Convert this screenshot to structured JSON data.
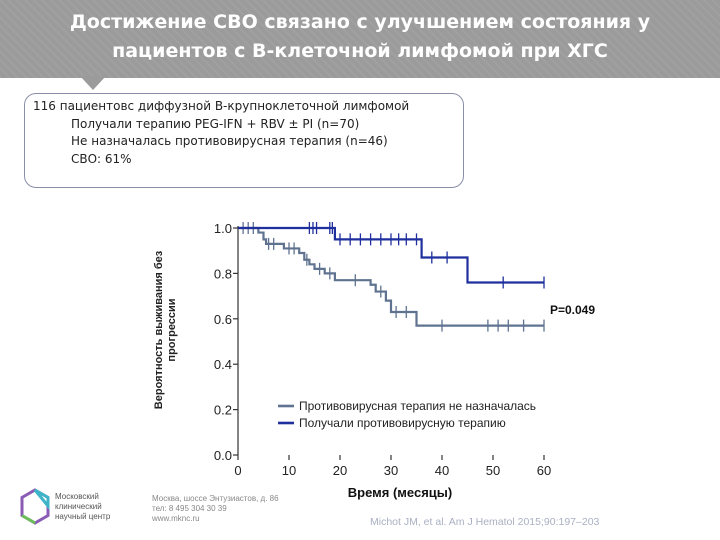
{
  "slide": {
    "title_line1": "Достижение СВО связано с улучшением состояния у",
    "title_line2": "пациентов  с В-клеточной лимфомой при ХГС"
  },
  "info_box": {
    "line1": "116 пациентовс диффузной В-крупноклеточной лимфомой",
    "line2": "Получали терапию PEG-IFN + RBV ± PI (n=70)",
    "line3": "Не назначалась противовирусная терапия (n=46)",
    "line4": "СВО:  61%"
  },
  "footer": {
    "org_line1": "Московский",
    "org_line2": "клинический",
    "org_line3": "научный центр",
    "addr_line1": "Москва, шоссе Энтузиастов, д. 86",
    "addr_line2": "тел: 8 495 304 30 39",
    "addr_line3": "www.mknc.ru",
    "citation": "Michot JM, et al. Am J Hematol 2015;90:197–203"
  },
  "colors": {
    "no_treatment": "#5f7390",
    "treated": "#1f2f9e",
    "header_bg": "#9b9b9b"
  },
  "chart_data": {
    "type": "line",
    "step": true,
    "xlabel": "Время (месяцы)",
    "ylabel_line1": "Вероятность выживания без",
    "ylabel_line2": "прогрессии",
    "xlim": [
      0,
      60
    ],
    "ylim": [
      0,
      1.0
    ],
    "xticks": [
      0,
      10,
      20,
      30,
      40,
      50,
      60
    ],
    "yticks": [
      0.0,
      0.2,
      0.4,
      0.6,
      0.8,
      1.0
    ],
    "ytick_labels": [
      "0.0",
      "0.2",
      "0.4",
      "0.6",
      "0.8",
      "1.0"
    ],
    "annotation": "P=0.049",
    "legend_position": "lower-right",
    "series": [
      {
        "name": "Противовирусная терапия не назначалась",
        "color": "#5f7390",
        "steps": [
          [
            0,
            1.0
          ],
          [
            4,
            0.98
          ],
          [
            5,
            0.95
          ],
          [
            5.5,
            0.93
          ],
          [
            9,
            0.91
          ],
          [
            12,
            0.89
          ],
          [
            13,
            0.86
          ],
          [
            14,
            0.84
          ],
          [
            15,
            0.82
          ],
          [
            17,
            0.8
          ],
          [
            19,
            0.77
          ],
          [
            26,
            0.75
          ],
          [
            27,
            0.72
          ],
          [
            29,
            0.68
          ],
          [
            30,
            0.63
          ],
          [
            35,
            0.57
          ],
          [
            60,
            0.57
          ]
        ],
        "censored": [
          [
            1,
            1.0
          ],
          [
            2,
            1.0
          ],
          [
            3,
            1.0
          ],
          [
            6,
            0.93
          ],
          [
            7,
            0.93
          ],
          [
            10,
            0.91
          ],
          [
            11,
            0.91
          ],
          [
            13.5,
            0.86
          ],
          [
            16,
            0.82
          ],
          [
            18,
            0.8
          ],
          [
            23,
            0.77
          ],
          [
            28,
            0.72
          ],
          [
            31,
            0.63
          ],
          [
            33,
            0.63
          ],
          [
            40,
            0.57
          ],
          [
            49,
            0.57
          ],
          [
            51,
            0.57
          ],
          [
            53,
            0.57
          ],
          [
            56,
            0.57
          ],
          [
            60,
            0.57
          ]
        ]
      },
      {
        "name": "Получали противовирусную терапию",
        "color": "#1f2f9e",
        "steps": [
          [
            0,
            1.0
          ],
          [
            19,
            0.95
          ],
          [
            36,
            0.87
          ],
          [
            45,
            0.76
          ],
          [
            60,
            0.76
          ]
        ],
        "censored": [
          [
            14,
            1.0
          ],
          [
            14.7,
            1.0
          ],
          [
            15.4,
            1.0
          ],
          [
            18,
            1.0
          ],
          [
            18.5,
            1.0
          ],
          [
            20,
            0.95
          ],
          [
            22,
            0.95
          ],
          [
            24,
            0.95
          ],
          [
            26,
            0.95
          ],
          [
            28,
            0.95
          ],
          [
            30,
            0.95
          ],
          [
            31.5,
            0.95
          ],
          [
            33,
            0.95
          ],
          [
            35,
            0.95
          ],
          [
            38,
            0.87
          ],
          [
            41,
            0.87
          ],
          [
            52,
            0.76
          ],
          [
            60,
            0.76
          ]
        ]
      }
    ]
  }
}
